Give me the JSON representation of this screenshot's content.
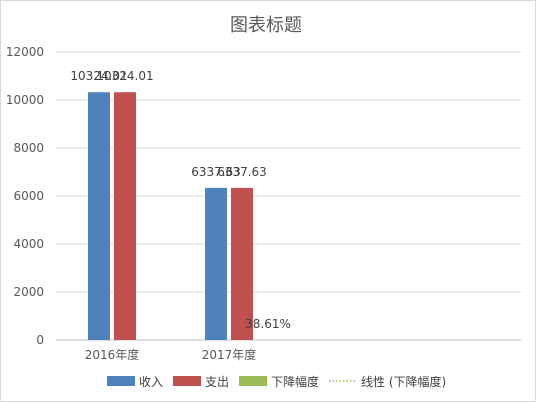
{
  "chart_data": {
    "type": "bar",
    "title": "图表标题",
    "categories": [
      "2016年度",
      "2017年度"
    ],
    "series": [
      {
        "name": "收入",
        "values": [
          10324.01,
          6337.63
        ],
        "color": "#4f81bd",
        "labels": [
          "10324.01",
          "6337.63"
        ]
      },
      {
        "name": "支出",
        "values": [
          10324.01,
          6337.63
        ],
        "color": "#c0504d",
        "labels": [
          "10324.01",
          "6337.63"
        ]
      },
      {
        "name": "下降幅度",
        "values": [
          null,
          0.3861
        ],
        "color": "#9bbb59",
        "labels": [
          "",
          "38.61%"
        ]
      }
    ],
    "trendline": {
      "name": "线性 (下降幅度)",
      "color": "#9bbb59",
      "style": "dotted"
    },
    "ylim": [
      0,
      12000
    ],
    "yticks": [
      "0",
      "2000",
      "4000",
      "6000",
      "8000",
      "10000",
      "12000"
    ],
    "grid": true,
    "legend_position": "bottom"
  }
}
